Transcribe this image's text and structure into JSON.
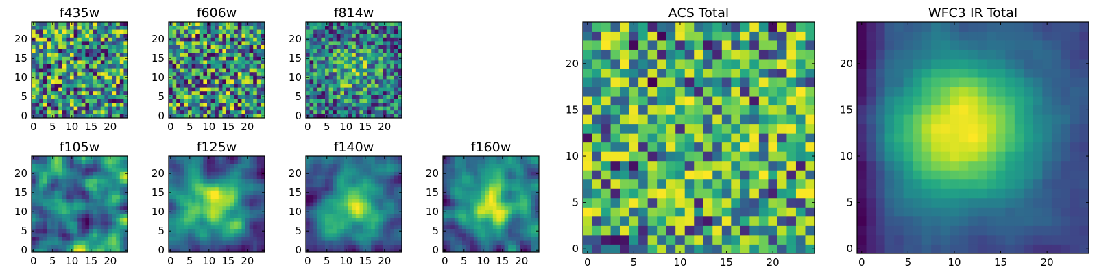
{
  "chart_data": [
    {
      "type": "heatmap",
      "title": "f435w",
      "grid": [
        25,
        25
      ],
      "xlim": [
        -0.5,
        24.5
      ],
      "ylim": [
        -0.5,
        24.5
      ],
      "xticks": [
        0,
        5,
        10,
        15,
        20
      ],
      "yticks": [
        0,
        5,
        10,
        15,
        20
      ],
      "xlabel": "",
      "ylabel": "",
      "colormap": "viridis",
      "pattern": "noise",
      "seed": 11,
      "smooth": 0
    },
    {
      "type": "heatmap",
      "title": "f606w",
      "grid": [
        25,
        25
      ],
      "xlim": [
        -0.5,
        24.5
      ],
      "ylim": [
        -0.5,
        24.5
      ],
      "xticks": [
        0,
        5,
        10,
        15,
        20
      ],
      "yticks": [
        0,
        5,
        10,
        15,
        20
      ],
      "xlabel": "",
      "ylabel": "",
      "colormap": "viridis",
      "pattern": "noise",
      "seed": 23,
      "smooth": 0
    },
    {
      "type": "heatmap",
      "title": "f814w",
      "grid": [
        25,
        25
      ],
      "xlim": [
        -0.5,
        24.5
      ],
      "ylim": [
        -0.5,
        24.5
      ],
      "xticks": [
        0,
        5,
        10,
        15,
        20
      ],
      "yticks": [
        0,
        5,
        10,
        15,
        20
      ],
      "xlabel": "",
      "ylabel": "",
      "colormap": "viridis",
      "pattern": "noise-center",
      "seed": 37,
      "smooth": 0
    },
    {
      "type": "heatmap",
      "title": "f105w",
      "grid": [
        25,
        25
      ],
      "xlim": [
        -0.5,
        24.5
      ],
      "ylim": [
        -0.5,
        24.5
      ],
      "xticks": [
        0,
        5,
        10,
        15,
        20
      ],
      "yticks": [
        0,
        5,
        10,
        15,
        20
      ],
      "xlabel": "",
      "ylabel": "",
      "colormap": "viridis",
      "pattern": "smooth",
      "seed": 41,
      "smooth": 2
    },
    {
      "type": "heatmap",
      "title": "f125w",
      "grid": [
        25,
        25
      ],
      "xlim": [
        -0.5,
        24.5
      ],
      "ylim": [
        -0.5,
        24.5
      ],
      "xticks": [
        0,
        5,
        10,
        15,
        20
      ],
      "yticks": [
        0,
        5,
        10,
        15,
        20
      ],
      "xlabel": "",
      "ylabel": "",
      "colormap": "viridis",
      "pattern": "smooth-center",
      "seed": 53,
      "smooth": 2
    },
    {
      "type": "heatmap",
      "title": "f140w",
      "grid": [
        25,
        25
      ],
      "xlim": [
        -0.5,
        24.5
      ],
      "ylim": [
        -0.5,
        24.5
      ],
      "xticks": [
        0,
        5,
        10,
        15,
        20
      ],
      "yticks": [
        0,
        5,
        10,
        15,
        20
      ],
      "xlabel": "",
      "ylabel": "",
      "colormap": "viridis",
      "pattern": "smooth-center",
      "seed": 67,
      "smooth": 2
    },
    {
      "type": "heatmap",
      "title": "f160w",
      "grid": [
        25,
        25
      ],
      "xlim": [
        -0.5,
        24.5
      ],
      "ylim": [
        -0.5,
        24.5
      ],
      "xticks": [
        0,
        5,
        10,
        15,
        20
      ],
      "yticks": [
        0,
        5,
        10,
        15,
        20
      ],
      "xlabel": "",
      "ylabel": "",
      "colormap": "viridis",
      "pattern": "smooth-center",
      "seed": 79,
      "smooth": 2
    },
    {
      "type": "heatmap",
      "title": "ACS Total",
      "grid": [
        25,
        25
      ],
      "xlim": [
        -0.5,
        24.5
      ],
      "ylim": [
        -0.5,
        24.5
      ],
      "xticks": [
        0,
        5,
        10,
        15,
        20
      ],
      "yticks": [
        0,
        5,
        10,
        15,
        20
      ],
      "xlabel": "",
      "ylabel": "",
      "colormap": "viridis",
      "pattern": "noise-bright",
      "seed": 97,
      "smooth": 0
    },
    {
      "type": "heatmap",
      "title": "WFC3 IR Total",
      "grid": [
        25,
        25
      ],
      "xlim": [
        -0.5,
        24.5
      ],
      "ylim": [
        -0.5,
        24.5
      ],
      "xticks": [
        0,
        5,
        10,
        15,
        20
      ],
      "yticks": [
        0,
        5,
        10,
        15,
        20
      ],
      "xlabel": "",
      "ylabel": "",
      "colormap": "viridis",
      "pattern": "gaussian",
      "seed": 101,
      "smooth": 1,
      "peak": [
        11,
        13
      ]
    }
  ]
}
